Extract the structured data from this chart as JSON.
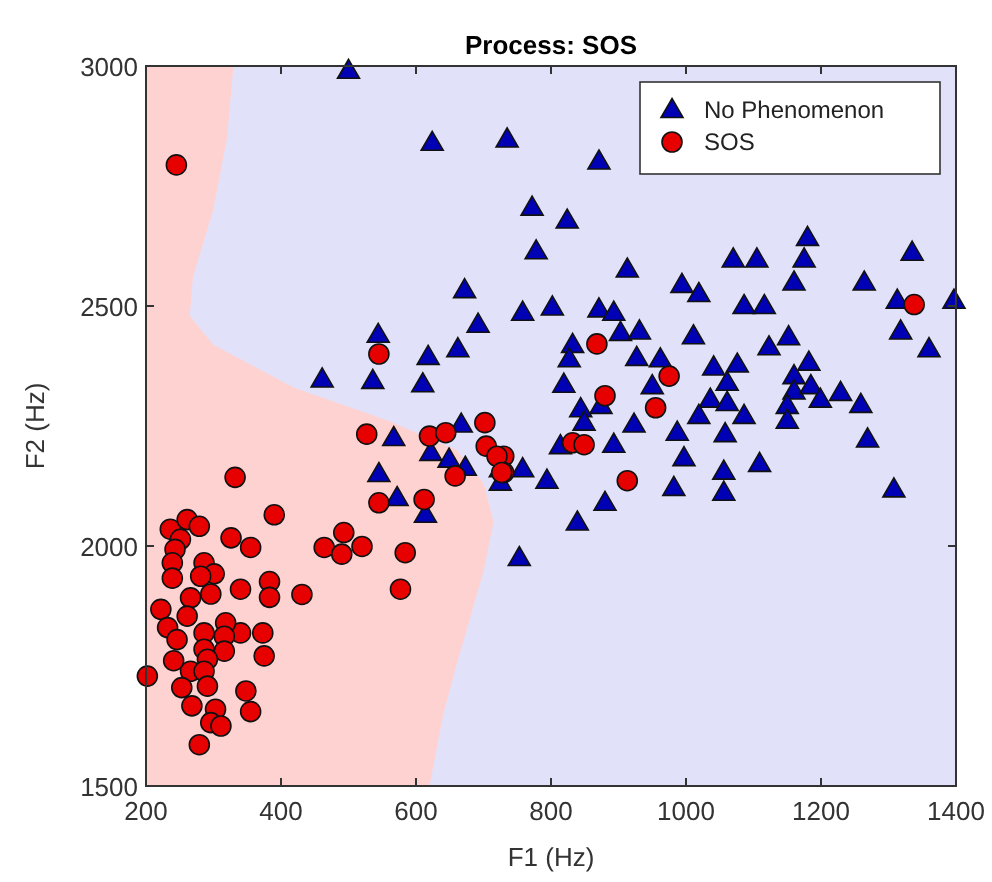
{
  "chart_data": {
    "type": "scatter",
    "title": "Process: SOS",
    "xlabel": "F1 (Hz)",
    "ylabel": "F2 (Hz)",
    "xlim": [
      200,
      1400
    ],
    "ylim": [
      1500,
      3000
    ],
    "xticks": [
      200,
      400,
      600,
      800,
      1000,
      1200,
      1400
    ],
    "yticks": [
      1500,
      2000,
      2500,
      3000
    ],
    "grid": false,
    "legend": "top right",
    "series": [
      {
        "name": "No Phenomenon",
        "color": "#0000b4",
        "marker": "triangle",
        "x": [
          500,
          624,
          735,
          672,
          692,
          544,
          662,
          618,
          461,
          536,
          610,
          567,
          667,
          871,
          772,
          824,
          778,
          913,
          1180,
          1070,
          1105,
          1175,
          1335,
          1160,
          1264,
          994,
          1019,
          1397,
          1313,
          758,
          802,
          871,
          893,
          1086,
          1116,
          1318,
          1360,
          832,
          903,
          931,
          1011,
          1123,
          1152,
          827,
          927,
          962,
          1041,
          1076,
          1182,
          819,
          950,
          1061,
          1160,
          1160,
          1185,
          1199,
          1229,
          1259,
          844,
          874,
          1036,
          1061,
          1150,
          849,
          923,
          1019,
          1086,
          1150,
          987,
          1269,
          893,
          1058,
          997,
          758,
          794,
          725,
          880,
          839,
          982,
          1056,
          1056,
          1109,
          1308,
          753,
          814,
          622,
          649,
          673,
          545,
          572,
          614,
          725
        ],
        "values": [
          2990,
          2840,
          2847,
          2533,
          2461,
          2440,
          2410,
          2394,
          2347,
          2344,
          2337,
          2225,
          2253,
          2801,
          2705,
          2678,
          2614,
          2576,
          2642,
          2597,
          2597,
          2597,
          2611,
          2549,
          2549,
          2544,
          2525,
          2511,
          2511,
          2486,
          2497,
          2493,
          2486,
          2500,
          2500,
          2447,
          2410,
          2419,
          2444,
          2447,
          2437,
          2414,
          2435,
          2389,
          2392,
          2389,
          2372,
          2378,
          2382,
          2336,
          2333,
          2340,
          2354,
          2322,
          2333,
          2305,
          2319,
          2294,
          2285,
          2292,
          2305,
          2298,
          2292,
          2257,
          2253,
          2271,
          2271,
          2261,
          2236,
          2222,
          2211,
          2233,
          2183,
          2160,
          2136,
          2160,
          2090,
          2049,
          2121,
          2155,
          2111,
          2171,
          2118,
          1975,
          2208,
          2194,
          2180,
          2163,
          2150,
          2100,
          2065,
          2132
        ]
      },
      {
        "name": "SOS",
        "color": "#e60000",
        "marker": "circle",
        "x": [
          245,
          545,
          527,
          620,
          644,
          702,
          1338,
          868,
          975,
          880,
          955,
          832,
          849,
          913,
          730,
          730,
          704,
          720,
          727,
          658,
          612,
          545,
          332,
          390,
          493,
          464,
          490,
          520,
          584,
          577,
          431,
          383,
          383,
          340,
          326,
          355,
          373,
          375,
          340,
          318,
          348,
          355,
          202,
          236,
          261,
          279,
          251,
          243,
          239,
          239,
          286,
          301,
          281,
          266,
          296,
          222,
          261,
          232,
          246,
          286,
          316,
          286,
          316,
          241,
          291,
          266,
          286,
          253,
          291,
          268,
          303,
          296,
          311,
          279
        ],
        "values": [
          2794,
          2400,
          2233,
          2229,
          2236,
          2257,
          2503,
          2421,
          2354,
          2313,
          2288,
          2215,
          2211,
          2136,
          2187,
          2153,
          2208,
          2187,
          2153,
          2146,
          2097,
          2090,
          2143,
          2065,
          2028,
          1997,
          1983,
          1999,
          1986,
          1910,
          1899,
          1926,
          1893,
          1910,
          2017,
          1997,
          1819,
          1771,
          1819,
          1840,
          1698,
          1655,
          1729,
          2035,
          2055,
          2041,
          2014,
          1993,
          1965,
          1933,
          1965,
          1942,
          1937,
          1892,
          1900,
          1868,
          1854,
          1830,
          1805,
          1819,
          1812,
          1785,
          1781,
          1761,
          1764,
          1739,
          1739,
          1705,
          1708,
          1667,
          1660,
          1632,
          1625,
          1586
        ]
      }
    ]
  }
}
